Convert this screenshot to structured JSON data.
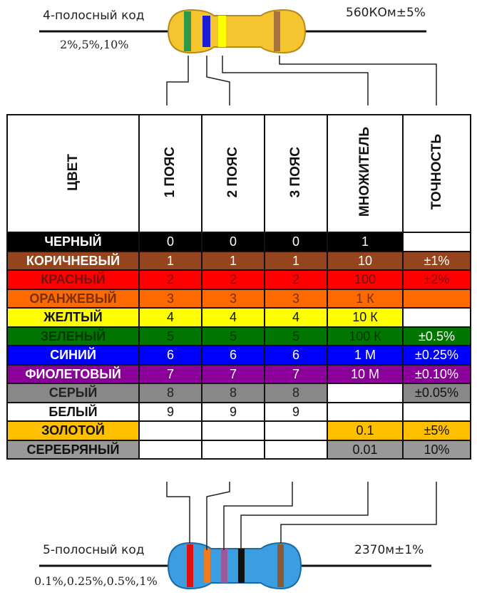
{
  "top_resistor": {
    "title": "4-полосный код",
    "tolerances": "2%,5%,10%",
    "value": "560КОм±5%",
    "body_color": "#f5c530",
    "bands": [
      {
        "name": "green",
        "color": "#2e9a48"
      },
      {
        "name": "blue",
        "color": "#1c1cd8"
      },
      {
        "name": "yellow",
        "color": "#ffff00"
      },
      {
        "name": "gold",
        "color": "#a8733a"
      }
    ]
  },
  "bottom_resistor": {
    "title": "5-полосный код",
    "tolerances": "0.1%,0.25%,0.5%,1%",
    "value": "2370м±1%",
    "body_color": "#3a9ee0",
    "bands": [
      {
        "name": "red",
        "color": "#e01010"
      },
      {
        "name": "orange",
        "color": "#f07a20"
      },
      {
        "name": "violet",
        "color": "#9a5a9a"
      },
      {
        "name": "black",
        "color": "#111111"
      },
      {
        "name": "brown",
        "color": "#8a5a30"
      }
    ]
  },
  "table": {
    "headers": [
      "ЦВЕТ",
      "1 ПОЯС",
      "2 ПОЯС",
      "3 ПОЯС",
      "МНОЖИТЕЛЬ",
      "ТОЧНОСТЬ"
    ],
    "rows": [
      {
        "name": "ЧЕРНЫЙ",
        "b1": "0",
        "b2": "0",
        "b3": "0",
        "mult": "1",
        "tol": "",
        "bg": "#000000",
        "fg": "#ffffff",
        "tol_bg": "#ffffff",
        "mult_bg": "#000000",
        "tol_fg": "#111111"
      },
      {
        "name": "КОРИЧНЕВЫЙ",
        "b1": "1",
        "b2": "1",
        "b3": "1",
        "mult": "10",
        "tol": "±1%",
        "bg": "#94451d",
        "fg": "#ffffff",
        "tol_bg": "#94451d",
        "mult_bg": "#94451d",
        "tol_fg": "#ffffff"
      },
      {
        "name": "КРАСНЫЙ",
        "b1": "2",
        "b2": "2",
        "b3": "2",
        "mult": "100",
        "tol": "±2%",
        "bg": "#ff0000",
        "fg": "#7a1010",
        "tol_bg": "#ff0000",
        "mult_bg": "#ff0000",
        "tol_fg": "#7a1010"
      },
      {
        "name": "ОРАНЖЕВЫЙ",
        "b1": "3",
        "b2": "3",
        "b3": "3",
        "mult": "1 К",
        "tol": "",
        "bg": "#ff6a00",
        "fg": "#7a3000",
        "tol_bg": "#ff6a00",
        "mult_bg": "#ff6a00",
        "tol_fg": "#7a3000"
      },
      {
        "name": "ЖЕЛТЫЙ",
        "b1": "4",
        "b2": "4",
        "b3": "4",
        "mult": "10 К",
        "tol": "",
        "bg": "#ffff00",
        "fg": "#111111",
        "tol_bg": "#ffffff",
        "mult_bg": "#ffff00",
        "tol_fg": "#111111"
      },
      {
        "name": "ЗЕЛЕНЫЙ",
        "b1": "5",
        "b2": "5",
        "b3": "5",
        "mult": "100 К",
        "tol": "±0.5%",
        "bg": "#007500",
        "fg": "#003800",
        "tol_bg": "#007500",
        "mult_bg": "#007500",
        "tol_fg": "#ffffff"
      },
      {
        "name": "СИНИЙ",
        "b1": "6",
        "b2": "6",
        "b3": "6",
        "mult": "1 М",
        "tol": "±0.25%",
        "bg": "#0000ff",
        "fg": "#ffffff",
        "tol_bg": "#0000ff",
        "mult_bg": "#0000ff",
        "tol_fg": "#ffffff"
      },
      {
        "name": "ФИОЛЕТОВЫЙ",
        "b1": "7",
        "b2": "7",
        "b3": "7",
        "mult": "10 М",
        "tol": "±0.10%",
        "bg": "#8a0099",
        "fg": "#ffffff",
        "tol_bg": "#8a0099",
        "mult_bg": "#8a0099",
        "tol_fg": "#ffffff"
      },
      {
        "name": "СЕРЫЙ",
        "b1": "8",
        "b2": "8",
        "b3": "8",
        "mult": "",
        "tol": "±0.05%",
        "bg": "#888888",
        "fg": "#222222",
        "tol_bg": "#888888",
        "mult_bg": "#ffffff",
        "tol_fg": "#111111"
      },
      {
        "name": "БЕЛЫЙ",
        "b1": "9",
        "b2": "9",
        "b3": "9",
        "mult": "",
        "tol": "",
        "bg": "#ffffff",
        "fg": "#111111",
        "tol_bg": "#ffffff",
        "mult_bg": "#ffffff",
        "tol_fg": "#111111"
      },
      {
        "name": "ЗОЛОТОЙ",
        "b1": "",
        "b2": "",
        "b3": "",
        "mult": "0.1",
        "tol": "±5%",
        "bg": "#ffc000",
        "fg": "#111111",
        "tol_bg": "#ffc000",
        "mult_bg": "#ffc000",
        "tol_fg": "#111111",
        "digits_blank": true
      },
      {
        "name": "СЕРЕБРЯНЫЙ",
        "b1": "",
        "b2": "",
        "b3": "",
        "mult": "0.01",
        "tol": "10%",
        "bg": "#999999",
        "fg": "#111111",
        "tol_bg": "#999999",
        "mult_bg": "#999999",
        "tol_fg": "#111111",
        "digits_blank": true
      }
    ]
  }
}
